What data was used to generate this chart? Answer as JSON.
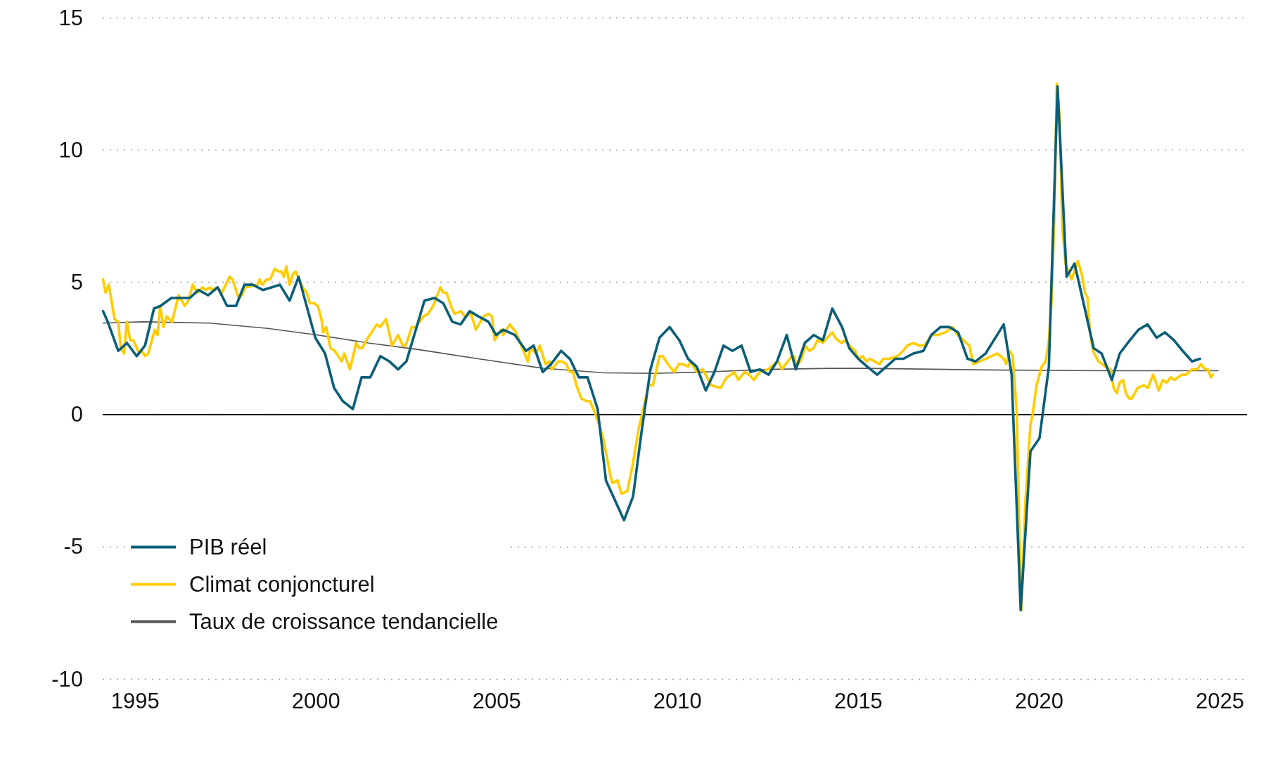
{
  "chart_data": {
    "type": "line",
    "xlim": [
      1994.1,
      2025.75
    ],
    "xticks": [
      1995,
      2000,
      2005,
      2010,
      2015,
      2020,
      2025
    ],
    "ylim": [
      -10,
      15
    ],
    "yticks": [
      -10,
      -5,
      0,
      5,
      10,
      15
    ],
    "grid": "y",
    "legend": "bottom left",
    "marker": "none",
    "line_style": "solid",
    "ref_lines": [
      {
        "axis": "y",
        "value": 0,
        "color": "#000000"
      }
    ],
    "series": [
      {
        "name": "PIB réel",
        "color": "#0b5e78",
        "x": [
          1994.11,
          1994.24,
          1994.53,
          1994.77,
          1995.04,
          1995.27,
          1995.52,
          1995.7,
          1996.0,
          1996.25,
          1996.51,
          1996.75,
          1997.02,
          1997.28,
          1997.54,
          1997.79,
          1998.02,
          1998.25,
          1998.53,
          1999.0,
          1999.27,
          1999.52,
          1999.98,
          2000.25,
          2000.5,
          2000.74,
          2001.02,
          2001.26,
          2001.5,
          2001.78,
          2002.03,
          2002.27,
          2002.5,
          2003.0,
          2003.28,
          2003.52,
          2003.77,
          2004.0,
          2004.25,
          2004.5,
          2004.77,
          2004.98,
          2005.18,
          2005.5,
          2005.81,
          2006.02,
          2006.27,
          2006.5,
          2006.78,
          2007.02,
          2007.27,
          2007.51,
          2007.79,
          2008.02,
          2008.52,
          2008.77,
          2009.0,
          2009.25,
          2009.5,
          2009.78,
          2010.05,
          2010.29,
          2010.53,
          2010.78,
          2011.02,
          2011.27,
          2011.52,
          2011.77,
          2012.02,
          2012.27,
          2012.52,
          2012.75,
          2013.02,
          2013.27,
          2013.52,
          2013.77,
          2014.02,
          2014.28,
          2014.55,
          2014.75,
          2015.0,
          2015.25,
          2015.52,
          2016.02,
          2016.24,
          2016.52,
          2016.8,
          2017.02,
          2017.27,
          2017.52,
          2017.76,
          2018.02,
          2018.24,
          2018.52,
          2019.02,
          2019.24,
          2019.49,
          2019.76,
          2020.01,
          2020.27,
          2020.51,
          2020.76,
          2020.98,
          2021.23,
          2021.51,
          2021.73,
          2022.01,
          2022.23,
          2022.51,
          2022.75,
          2023.0,
          2023.25,
          2023.48,
          2023.73,
          2023.97,
          2024.23,
          2024.45
        ],
        "values": [
          3.9,
          3.5,
          2.4,
          2.7,
          2.2,
          2.6,
          4.0,
          4.1,
          4.4,
          4.4,
          4.4,
          4.7,
          4.5,
          4.8,
          4.1,
          4.1,
          4.9,
          4.9,
          4.7,
          4.9,
          4.3,
          5.2,
          2.9,
          2.3,
          1.0,
          0.5,
          0.2,
          1.4,
          1.4,
          2.2,
          2.0,
          1.7,
          2.0,
          4.3,
          4.4,
          4.2,
          3.5,
          3.4,
          3.9,
          3.7,
          3.5,
          3.0,
          3.2,
          3.0,
          2.4,
          2.6,
          1.6,
          1.9,
          2.4,
          2.1,
          1.4,
          1.4,
          0.2,
          -2.5,
          -4.0,
          -3.1,
          -0.7,
          1.7,
          2.9,
          3.3,
          2.8,
          2.1,
          1.8,
          0.9,
          1.6,
          2.6,
          2.4,
          2.6,
          1.6,
          1.7,
          1.5,
          2.0,
          3.0,
          1.7,
          2.7,
          3.0,
          2.8,
          4.0,
          3.3,
          2.5,
          2.1,
          1.8,
          1.5,
          2.1,
          2.1,
          2.3,
          2.4,
          3.0,
          3.3,
          3.3,
          3.1,
          2.1,
          2.0,
          2.3,
          3.4,
          1.5,
          -7.4,
          -1.4,
          -0.9,
          1.8,
          12.4,
          5.2,
          5.7,
          4.2,
          2.5,
          2.3,
          1.3,
          2.3,
          2.8,
          3.2,
          3.4,
          2.9,
          3.1,
          2.8,
          2.4,
          2.0,
          2.1
        ]
      },
      {
        "name": "Climat conjoncturel",
        "color": "#ffcc00",
        "x": [
          1994.11,
          1994.18,
          1994.27,
          1994.43,
          1994.53,
          1994.6,
          1994.69,
          1994.77,
          1994.86,
          1994.95,
          1995.11,
          1995.19,
          1995.27,
          1995.36,
          1995.54,
          1995.62,
          1995.69,
          1995.78,
          1995.87,
          1996.02,
          1996.2,
          1996.37,
          1996.47,
          1996.59,
          1996.72,
          1996.86,
          1996.94,
          1997.06,
          1997.12,
          1997.27,
          1997.4,
          1997.61,
          1997.69,
          1997.86,
          1997.95,
          1998.04,
          1998.38,
          1998.44,
          1998.52,
          1998.63,
          1998.73,
          1998.86,
          1998.97,
          1999.04,
          1999.11,
          1999.18,
          1999.27,
          1999.36,
          1999.44,
          1999.63,
          1999.74,
          1999.83,
          1999.95,
          2000.05,
          2000.15,
          2000.2,
          2000.28,
          2000.4,
          2000.52,
          2000.71,
          2000.78,
          2000.94,
          2001.11,
          2001.2,
          2001.27,
          2001.44,
          2001.68,
          2001.77,
          2001.94,
          2002.1,
          2002.27,
          2002.4,
          2002.48,
          2002.65,
          2002.76,
          2002.97,
          2003.1,
          2003.24,
          2003.44,
          2003.52,
          2003.61,
          2003.73,
          2003.83,
          2004.01,
          2004.11,
          2004.29,
          2004.42,
          2004.55,
          2004.63,
          2004.77,
          2004.87,
          2004.94,
          2005.12,
          2005.18,
          2005.36,
          2005.53,
          2005.71,
          2005.86,
          2005.93,
          2006.09,
          2006.19,
          2006.35,
          2006.45,
          2006.52,
          2006.7,
          2006.8,
          2006.92,
          2007.02,
          2007.11,
          2007.2,
          2007.34,
          2007.48,
          2007.58,
          2007.7,
          2007.86,
          2007.96,
          2008.14,
          2008.2,
          2008.34,
          2008.45,
          2008.61,
          2008.76,
          2008.93,
          2009.07,
          2009.2,
          2009.32,
          2009.5,
          2009.59,
          2009.73,
          2009.91,
          2010.03,
          2010.15,
          2010.29,
          2010.36,
          2010.53,
          2010.7,
          2010.93,
          2011.19,
          2011.36,
          2011.47,
          2011.57,
          2011.68,
          2011.85,
          2011.98,
          2012.11,
          2012.27,
          2012.51,
          2012.67,
          2012.79,
          2012.88,
          2013.16,
          2013.23,
          2013.29,
          2013.43,
          2013.53,
          2013.64,
          2013.76,
          2013.87,
          2014.02,
          2014.14,
          2014.28,
          2014.36,
          2014.52,
          2014.63,
          2014.75,
          2014.91,
          2015.01,
          2015.12,
          2015.22,
          2015.32,
          2015.58,
          2015.69,
          2015.86,
          2016.08,
          2016.24,
          2016.35,
          2016.52,
          2016.69,
          2016.83,
          2017.02,
          2017.19,
          2017.41,
          2017.61,
          2017.74,
          2017.91,
          2018.07,
          2018.18,
          2018.35,
          2018.52,
          2018.68,
          2018.85,
          2019.02,
          2019.09,
          2019.18,
          2019.27,
          2019.38,
          2019.46,
          2019.51,
          2019.62,
          2019.76,
          2019.82,
          2019.93,
          2020.07,
          2020.18,
          2020.27,
          2020.35,
          2020.42,
          2020.49,
          2020.57,
          2020.64,
          2020.73,
          2020.9,
          2021.07,
          2021.18,
          2021.27,
          2021.34,
          2021.4,
          2021.49,
          2021.64,
          2021.75,
          2021.84,
          2021.98,
          2022.06,
          2022.15,
          2022.23,
          2022.32,
          2022.4,
          2022.49,
          2022.56,
          2022.73,
          2022.9,
          2023.01,
          2023.15,
          2023.31,
          2023.42,
          2023.53,
          2023.64,
          2023.73,
          2023.84,
          2023.95,
          2024.06,
          2024.23,
          2024.37,
          2024.48,
          2024.59,
          2024.67,
          2024.75,
          2024.81
        ],
        "values": [
          5.1,
          4.6,
          4.9,
          3.6,
          3.5,
          2.5,
          2.3,
          3.5,
          2.8,
          2.8,
          2.3,
          2.4,
          2.2,
          2.3,
          3.2,
          3.0,
          4.1,
          3.3,
          3.7,
          3.5,
          4.5,
          4.1,
          4.3,
          4.9,
          4.6,
          4.8,
          4.7,
          4.8,
          4.7,
          4.8,
          4.6,
          5.2,
          5.1,
          4.4,
          4.5,
          4.8,
          4.9,
          5.1,
          4.9,
          5.1,
          5.1,
          5.5,
          5.4,
          5.4,
          5.2,
          5.6,
          4.9,
          5.3,
          5.4,
          4.8,
          4.6,
          4.2,
          4.2,
          4.1,
          3.6,
          3.1,
          3.3,
          2.5,
          2.4,
          2.0,
          2.3,
          1.7,
          2.7,
          2.5,
          2.5,
          2.9,
          3.4,
          3.3,
          3.6,
          2.6,
          3.0,
          2.6,
          2.6,
          3.3,
          3.3,
          3.7,
          3.8,
          4.1,
          4.8,
          4.6,
          4.6,
          4.1,
          3.8,
          3.9,
          3.7,
          3.8,
          3.2,
          3.5,
          3.7,
          3.8,
          3.7,
          2.8,
          3.2,
          3.0,
          3.4,
          3.1,
          2.5,
          2.0,
          2.5,
          2.3,
          2.6,
          1.9,
          2.0,
          1.7,
          2.0,
          2.0,
          1.9,
          1.6,
          1.6,
          1.1,
          0.6,
          0.5,
          0.5,
          0.1,
          -0.5,
          -1.0,
          -2.3,
          -2.6,
          -2.5,
          -3.0,
          -2.9,
          -1.9,
          -0.5,
          0.3,
          1.1,
          1.1,
          2.2,
          2.2,
          1.9,
          1.6,
          1.9,
          1.9,
          1.8,
          2.0,
          1.6,
          1.7,
          1.1,
          1.0,
          1.4,
          1.5,
          1.6,
          1.3,
          1.6,
          1.5,
          1.3,
          1.6,
          1.7,
          1.9,
          2.0,
          1.7,
          2.2,
          2.2,
          1.8,
          2.1,
          2.6,
          2.4,
          2.5,
          2.8,
          2.7,
          2.9,
          3.1,
          2.9,
          2.7,
          2.8,
          2.6,
          2.4,
          2.1,
          2.2,
          2.0,
          2.1,
          1.9,
          2.1,
          2.1,
          2.2,
          2.4,
          2.6,
          2.7,
          2.6,
          2.6,
          3.0,
          3.0,
          3.1,
          3.3,
          3.0,
          2.8,
          2.6,
          1.9,
          2.0,
          2.1,
          2.2,
          2.3,
          2.1,
          1.9,
          2.4,
          2.2,
          0.1,
          -4.8,
          -7.4,
          -3.3,
          -0.4,
          0.0,
          1.1,
          1.8,
          2.0,
          2.8,
          4.4,
          7.4,
          12.5,
          11.2,
          7.1,
          5.7,
          5.1,
          5.8,
          5.3,
          4.6,
          4.4,
          3.2,
          2.4,
          2.0,
          1.9,
          1.8,
          1.7,
          1.0,
          0.8,
          1.2,
          1.3,
          0.8,
          0.6,
          0.6,
          1.0,
          1.1,
          1.0,
          1.5,
          0.9,
          1.3,
          1.2,
          1.4,
          1.3,
          1.4,
          1.5,
          1.5,
          1.7,
          1.7,
          1.9,
          1.7,
          1.7,
          1.4,
          1.5
        ]
      },
      {
        "name": "Taux de croissance tendancielle",
        "color": "#555555",
        "x": [
          1994.11,
          1995.19,
          1997.06,
          1998.66,
          2000.05,
          2001.44,
          2002.83,
          2004.49,
          2006.23,
          2007.96,
          2009.35,
          2010.74,
          2012.48,
          2014.21,
          2015.19,
          2018.52,
          2021.84,
          2024.95
        ],
        "values": [
          3.45,
          3.5,
          3.45,
          3.25,
          3.0,
          2.7,
          2.45,
          2.1,
          1.75,
          1.57,
          1.55,
          1.6,
          1.7,
          1.74,
          1.74,
          1.68,
          1.65,
          1.65
        ]
      }
    ]
  }
}
